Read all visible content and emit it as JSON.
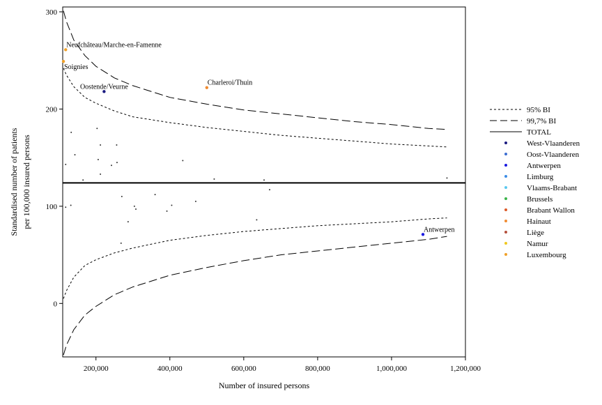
{
  "chart_data": {
    "type": "scatter",
    "xlabel": "Number of insured persons",
    "ylabel_lines": [
      "Standardised number of patients",
      "per 100,000 insured persons"
    ],
    "xlim": [
      110000,
      1200000
    ],
    "ylim": [
      -55,
      305
    ],
    "x_ticks": [
      200000,
      400000,
      600000,
      800000,
      1000000,
      1200000
    ],
    "x_tick_labels": [
      "200,000",
      "400,000",
      "600,000",
      "800,000",
      "1,000,000",
      "1,200,000"
    ],
    "y_ticks": [
      0,
      100,
      200,
      300
    ],
    "y_tick_labels": [
      "0",
      "100",
      "200",
      "300"
    ],
    "grid": false,
    "legend_position": "right",
    "total_rate": 124,
    "limit_curves": {
      "x": [
        112000,
        120000,
        140000,
        170000,
        200000,
        250000,
        300000,
        400000,
        500000,
        600000,
        700000,
        800000,
        900000,
        1000000,
        1100000,
        1150000
      ],
      "upper_997": [
        301,
        290,
        271,
        255,
        244,
        232,
        224,
        212,
        205,
        199,
        195,
        191,
        187,
        184,
        180,
        179
      ],
      "upper_95": [
        242,
        235,
        223,
        212,
        206,
        198,
        192,
        186,
        181,
        177,
        173,
        170,
        167,
        164,
        162,
        161
      ],
      "lower_95": [
        5,
        13,
        27,
        39,
        45,
        52,
        57,
        65,
        70,
        74,
        77,
        80,
        82,
        84,
        87,
        88
      ],
      "lower_997": [
        -53,
        -43,
        -27,
        -12,
        -3,
        9,
        17,
        29,
        37,
        44,
        50,
        54,
        58,
        62,
        66,
        69
      ]
    },
    "series": [
      {
        "name": "West-Vlaanderen",
        "color": "#1a1a80",
        "points": [
          [
            222000,
            218
          ]
        ]
      },
      {
        "name": "Antwerpen",
        "color": "#1a1ae0",
        "points": [
          [
            1085000,
            71
          ]
        ]
      },
      {
        "name": "Hainaut",
        "color": "#f08c32",
        "points": [
          [
            500000,
            222
          ]
        ]
      },
      {
        "name": "Luxembourg",
        "color": "#f0a028",
        "points": [
          [
            112000,
            249
          ],
          [
            118000,
            261
          ]
        ]
      }
    ],
    "minor_points": [
      [
        118000,
        143
      ],
      [
        133000,
        176
      ],
      [
        143000,
        153
      ],
      [
        165000,
        127
      ],
      [
        203000,
        180
      ],
      [
        206000,
        148
      ],
      [
        212000,
        163
      ],
      [
        212000,
        133
      ],
      [
        242000,
        142
      ],
      [
        256000,
        163
      ],
      [
        257000,
        145
      ],
      [
        435000,
        147
      ],
      [
        520000,
        128
      ],
      [
        655000,
        127
      ],
      [
        1150000,
        129
      ],
      [
        118000,
        99
      ],
      [
        132000,
        101
      ],
      [
        270000,
        110
      ],
      [
        268000,
        62
      ],
      [
        287000,
        84
      ],
      [
        304000,
        100
      ],
      [
        308000,
        97
      ],
      [
        360000,
        112
      ],
      [
        392000,
        95
      ],
      [
        405000,
        101
      ],
      [
        470000,
        105
      ],
      [
        635000,
        86
      ],
      [
        670000,
        117
      ]
    ],
    "annotations": [
      {
        "text": "Neufchâteau/Marche-en-Famenne",
        "x": 118000,
        "y": 261,
        "anchor": "right-up"
      },
      {
        "text": "Soignies",
        "x": 112000,
        "y": 249,
        "anchor": "right-down"
      },
      {
        "text": "Oostende/Veurne",
        "x": 222000,
        "y": 218,
        "anchor": "center-up"
      },
      {
        "text": "Charleroi/Thuin",
        "x": 500000,
        "y": 222,
        "anchor": "right-up"
      },
      {
        "text": "Antwerpen",
        "x": 1085000,
        "y": 71,
        "anchor": "right-up"
      }
    ],
    "legend": [
      {
        "label": "95% BI",
        "kind": "line",
        "dash": "short"
      },
      {
        "label": "99,7% BI",
        "kind": "line",
        "dash": "long"
      },
      {
        "label": "TOTAL",
        "kind": "line",
        "dash": "solid"
      },
      {
        "label": "West-Vlaanderen",
        "kind": "dot",
        "color": "#1a1a80"
      },
      {
        "label": "Oost-Vlaanderen",
        "kind": "dot",
        "color": "#3c6ed2"
      },
      {
        "label": "Antwerpen",
        "kind": "dot",
        "color": "#1a1ae0"
      },
      {
        "label": "Limburg",
        "kind": "dot",
        "color": "#3c8ce6"
      },
      {
        "label": "Vlaams-Brabant",
        "kind": "dot",
        "color": "#5ac8f0"
      },
      {
        "label": "Brussels",
        "kind": "dot",
        "color": "#3cb44b"
      },
      {
        "label": "Brabant Wallon",
        "kind": "dot",
        "color": "#dc5a28"
      },
      {
        "label": "Hainaut",
        "kind": "dot",
        "color": "#f08c32"
      },
      {
        "label": "Liège",
        "kind": "dot",
        "color": "#b4503c"
      },
      {
        "label": "Namur",
        "kind": "dot",
        "color": "#f0c81e"
      },
      {
        "label": "Luxembourg",
        "kind": "dot",
        "color": "#f0a028"
      }
    ]
  }
}
